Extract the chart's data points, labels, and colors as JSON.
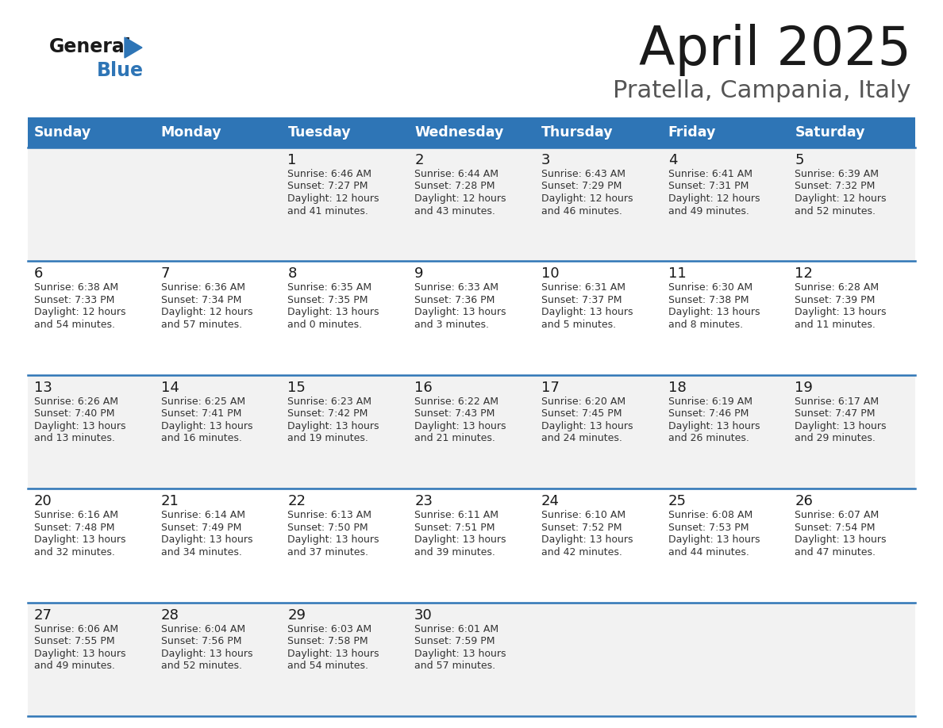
{
  "title": "April 2025",
  "subtitle": "Pratella, Campania, Italy",
  "header_bg": "#2E75B6",
  "header_text_color": "#FFFFFF",
  "days_of_week": [
    "Sunday",
    "Monday",
    "Tuesday",
    "Wednesday",
    "Thursday",
    "Friday",
    "Saturday"
  ],
  "row_bg_light": "#F2F2F2",
  "row_bg_white": "#FFFFFF",
  "cell_border_color": "#2E75B6",
  "text_color": "#1A1A1A",
  "info_color": "#333333",
  "calendar": [
    [
      {
        "day": "",
        "info": ""
      },
      {
        "day": "",
        "info": ""
      },
      {
        "day": "1",
        "info": "Sunrise: 6:46 AM\nSunset: 7:27 PM\nDaylight: 12 hours\nand 41 minutes."
      },
      {
        "day": "2",
        "info": "Sunrise: 6:44 AM\nSunset: 7:28 PM\nDaylight: 12 hours\nand 43 minutes."
      },
      {
        "day": "3",
        "info": "Sunrise: 6:43 AM\nSunset: 7:29 PM\nDaylight: 12 hours\nand 46 minutes."
      },
      {
        "day": "4",
        "info": "Sunrise: 6:41 AM\nSunset: 7:31 PM\nDaylight: 12 hours\nand 49 minutes."
      },
      {
        "day": "5",
        "info": "Sunrise: 6:39 AM\nSunset: 7:32 PM\nDaylight: 12 hours\nand 52 minutes."
      }
    ],
    [
      {
        "day": "6",
        "info": "Sunrise: 6:38 AM\nSunset: 7:33 PM\nDaylight: 12 hours\nand 54 minutes."
      },
      {
        "day": "7",
        "info": "Sunrise: 6:36 AM\nSunset: 7:34 PM\nDaylight: 12 hours\nand 57 minutes."
      },
      {
        "day": "8",
        "info": "Sunrise: 6:35 AM\nSunset: 7:35 PM\nDaylight: 13 hours\nand 0 minutes."
      },
      {
        "day": "9",
        "info": "Sunrise: 6:33 AM\nSunset: 7:36 PM\nDaylight: 13 hours\nand 3 minutes."
      },
      {
        "day": "10",
        "info": "Sunrise: 6:31 AM\nSunset: 7:37 PM\nDaylight: 13 hours\nand 5 minutes."
      },
      {
        "day": "11",
        "info": "Sunrise: 6:30 AM\nSunset: 7:38 PM\nDaylight: 13 hours\nand 8 minutes."
      },
      {
        "day": "12",
        "info": "Sunrise: 6:28 AM\nSunset: 7:39 PM\nDaylight: 13 hours\nand 11 minutes."
      }
    ],
    [
      {
        "day": "13",
        "info": "Sunrise: 6:26 AM\nSunset: 7:40 PM\nDaylight: 13 hours\nand 13 minutes."
      },
      {
        "day": "14",
        "info": "Sunrise: 6:25 AM\nSunset: 7:41 PM\nDaylight: 13 hours\nand 16 minutes."
      },
      {
        "day": "15",
        "info": "Sunrise: 6:23 AM\nSunset: 7:42 PM\nDaylight: 13 hours\nand 19 minutes."
      },
      {
        "day": "16",
        "info": "Sunrise: 6:22 AM\nSunset: 7:43 PM\nDaylight: 13 hours\nand 21 minutes."
      },
      {
        "day": "17",
        "info": "Sunrise: 6:20 AM\nSunset: 7:45 PM\nDaylight: 13 hours\nand 24 minutes."
      },
      {
        "day": "18",
        "info": "Sunrise: 6:19 AM\nSunset: 7:46 PM\nDaylight: 13 hours\nand 26 minutes."
      },
      {
        "day": "19",
        "info": "Sunrise: 6:17 AM\nSunset: 7:47 PM\nDaylight: 13 hours\nand 29 minutes."
      }
    ],
    [
      {
        "day": "20",
        "info": "Sunrise: 6:16 AM\nSunset: 7:48 PM\nDaylight: 13 hours\nand 32 minutes."
      },
      {
        "day": "21",
        "info": "Sunrise: 6:14 AM\nSunset: 7:49 PM\nDaylight: 13 hours\nand 34 minutes."
      },
      {
        "day": "22",
        "info": "Sunrise: 6:13 AM\nSunset: 7:50 PM\nDaylight: 13 hours\nand 37 minutes."
      },
      {
        "day": "23",
        "info": "Sunrise: 6:11 AM\nSunset: 7:51 PM\nDaylight: 13 hours\nand 39 minutes."
      },
      {
        "day": "24",
        "info": "Sunrise: 6:10 AM\nSunset: 7:52 PM\nDaylight: 13 hours\nand 42 minutes."
      },
      {
        "day": "25",
        "info": "Sunrise: 6:08 AM\nSunset: 7:53 PM\nDaylight: 13 hours\nand 44 minutes."
      },
      {
        "day": "26",
        "info": "Sunrise: 6:07 AM\nSunset: 7:54 PM\nDaylight: 13 hours\nand 47 minutes."
      }
    ],
    [
      {
        "day": "27",
        "info": "Sunrise: 6:06 AM\nSunset: 7:55 PM\nDaylight: 13 hours\nand 49 minutes."
      },
      {
        "day": "28",
        "info": "Sunrise: 6:04 AM\nSunset: 7:56 PM\nDaylight: 13 hours\nand 52 minutes."
      },
      {
        "day": "29",
        "info": "Sunrise: 6:03 AM\nSunset: 7:58 PM\nDaylight: 13 hours\nand 54 minutes."
      },
      {
        "day": "30",
        "info": "Sunrise: 6:01 AM\nSunset: 7:59 PM\nDaylight: 13 hours\nand 57 minutes."
      },
      {
        "day": "",
        "info": ""
      },
      {
        "day": "",
        "info": ""
      },
      {
        "day": "",
        "info": ""
      }
    ]
  ]
}
